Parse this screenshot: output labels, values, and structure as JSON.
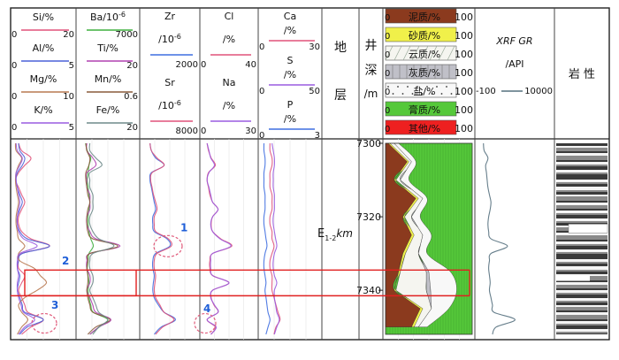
{
  "colors": {
    "si": "#e0527a",
    "al": "#4a60d8",
    "mg": "#b87850",
    "k": "#9a5ce0",
    "ba": "#2e5fa8",
    "ti": "#b040b0",
    "mn": "#8a5c3c",
    "fe": "#6e8a8a",
    "ba2": "#3fb03f",
    "zr": "#3f6ee0",
    "sr": "#e0527a",
    "cl": "#e0527a",
    "na": "#9a5ce0",
    "ca": "#e0527a",
    "s": "#9a5ce0",
    "p": "#3f6ee0",
    "gr": "#55707e",
    "highlight": "#e02020",
    "circle": "#e05a7a",
    "marker": "#1f5fd8",
    "mud": "#8b3a1e",
    "sand": "#f0f04a",
    "dolo": "#f5f5f0",
    "lime": "#c0c0c8",
    "salt": "#f8f8f8",
    "gypsum": "#55c83a",
    "other": "#ee2020"
  },
  "headers": {
    "col1": [
      {
        "name": "Si/%",
        "min": "0",
        "max": "20"
      },
      {
        "name": "Al/%",
        "min": "0",
        "max": "5"
      },
      {
        "name": "Mg/%",
        "min": "0",
        "max": "10"
      },
      {
        "name": "K/%",
        "min": "0",
        "max": "5"
      }
    ],
    "col2": [
      {
        "name": "Ba/10",
        "sup": "-6",
        "min": "",
        "max": "7000"
      },
      {
        "name": "Ti/%",
        "min": "",
        "max": "20"
      },
      {
        "name": "Mn/%",
        "min": "",
        "max": "0.6"
      },
      {
        "name": "Fe/%",
        "min": "",
        "max": "20"
      }
    ],
    "col3": [
      {
        "name": "Zr",
        "unit": "/10",
        "sup": "-6",
        "min": "",
        "max": "2000"
      },
      {
        "name": "Sr",
        "unit": "/10",
        "sup": "-6",
        "min": "",
        "max": "8000"
      }
    ],
    "col4": [
      {
        "name": "Cl",
        "unit": "/%",
        "min": "0",
        "max": "40"
      },
      {
        "name": "Na",
        "unit": "/%",
        "min": "0",
        "max": "30"
      }
    ],
    "col5": [
      {
        "name": "Ca",
        "unit": "/%",
        "min": "0",
        "max": "30"
      },
      {
        "name": "S",
        "unit": "/%",
        "min": "0",
        "max": "50"
      },
      {
        "name": "P",
        "unit": "/%",
        "min": "0",
        "max": "3"
      }
    ],
    "formation_label": [
      "地",
      "层"
    ],
    "depth_label": [
      "井",
      "深",
      "/m"
    ],
    "lith_legend": [
      "泥质/%",
      "砂质/%",
      "云质/%",
      "灰质/%",
      "盐/%",
      "膏质/%",
      "其他/%"
    ],
    "lith_min": "0",
    "lith_max": "100",
    "gr_title": "XRF GR",
    "gr_unit": "/API",
    "gr_min": "-100",
    "gr_max": "10000",
    "rock_label": "岩 性"
  },
  "formation_name": "E",
  "formation_sub": "1-2",
  "formation_suffix": "km",
  "depth_ticks": [
    "7300",
    "7320",
    "7340"
  ],
  "markers": [
    "1",
    "2",
    "3",
    "4"
  ],
  "chart_data": {
    "type": "line",
    "y_axis": {
      "label": "井深/m",
      "range": [
        7300,
        7352
      ],
      "ticks": [
        7300,
        7320,
        7340
      ]
    },
    "highlight_interval": [
      7334.5,
      7341.5
    ],
    "depth": [
      7300,
      7302,
      7304,
      7306,
      7308,
      7310,
      7312,
      7314,
      7316,
      7318,
      7320,
      7322,
      7324,
      7326,
      7328,
      7330,
      7332,
      7334,
      7336,
      7338,
      7340,
      7342,
      7344,
      7346,
      7348,
      7350,
      7352
    ],
    "series": [
      {
        "name": "Si",
        "track": 1,
        "range": [
          0,
          20
        ],
        "values": [
          2,
          3,
          6,
          4,
          2,
          1,
          2,
          3,
          4,
          3,
          2,
          2,
          3,
          6,
          12,
          3,
          2,
          2,
          4,
          3,
          2,
          3,
          4,
          5,
          10,
          6,
          3
        ]
      },
      {
        "name": "Al",
        "track": 1,
        "range": [
          0,
          5
        ],
        "values": [
          0.5,
          0.6,
          1.0,
          0.8,
          0.4,
          0.3,
          0.4,
          0.6,
          0.8,
          0.6,
          0.4,
          0.4,
          0.6,
          1.2,
          3.0,
          0.8,
          0.5,
          0.4,
          0.6,
          0.5,
          0.4,
          0.6,
          0.8,
          1.0,
          2.5,
          1.2,
          0.6
        ]
      },
      {
        "name": "Mg",
        "track": 1,
        "range": [
          0,
          10
        ],
        "values": [
          0.5,
          0.6,
          1.5,
          1.0,
          0.6,
          0.5,
          0.6,
          0.8,
          1.0,
          0.8,
          0.6,
          0.6,
          0.8,
          1.0,
          2.0,
          1.0,
          1.2,
          3.5,
          4.5,
          5.5,
          4.0,
          2.0,
          1.0,
          1.5,
          2.5,
          1.5,
          0.8
        ]
      },
      {
        "name": "K",
        "track": 1,
        "range": [
          0,
          5
        ],
        "values": [
          0.3,
          0.4,
          0.8,
          0.6,
          0.3,
          0.3,
          0.4,
          0.5,
          0.6,
          0.5,
          0.4,
          0.4,
          0.5,
          0.9,
          2.0,
          0.6,
          0.4,
          0.4,
          0.5,
          0.4,
          0.4,
          0.5,
          0.7,
          0.9,
          1.8,
          1.0,
          0.5
        ]
      },
      {
        "name": "Ba",
        "track": 2,
        "range": [
          0,
          7000
        ],
        "values": [
          900,
          1100,
          1500,
          1300,
          1200,
          1100,
          1200,
          1300,
          1400,
          1300,
          1200,
          1200,
          1300,
          1500,
          1800,
          1300,
          1200,
          1100,
          1200,
          1300,
          1200,
          1300,
          1500,
          1800,
          3500,
          2500,
          1400
        ]
      },
      {
        "name": "Ti",
        "track": 2,
        "range": [
          0,
          20
        ],
        "values": [
          3,
          3,
          5,
          6,
          3,
          3,
          3,
          4,
          4,
          4,
          3,
          3,
          4,
          6,
          14,
          4,
          3,
          3,
          4,
          4,
          3,
          4,
          5,
          6,
          11,
          7,
          4
        ]
      },
      {
        "name": "Mn",
        "track": 2,
        "range": [
          0,
          0.6
        ],
        "values": [
          0.08,
          0.09,
          0.12,
          0.11,
          0.08,
          0.08,
          0.09,
          0.1,
          0.12,
          0.1,
          0.09,
          0.09,
          0.1,
          0.15,
          0.4,
          0.12,
          0.1,
          0.09,
          0.1,
          0.1,
          0.09,
          0.1,
          0.12,
          0.15,
          0.32,
          0.18,
          0.1
        ]
      },
      {
        "name": "Fe",
        "track": 2,
        "range": [
          0,
          20
        ],
        "values": [
          4,
          4,
          6,
          8,
          4,
          4,
          4,
          5,
          5,
          5,
          4,
          4,
          5,
          7,
          12,
          5,
          4,
          4,
          5,
          5,
          4,
          5,
          6,
          7,
          10,
          7,
          5
        ]
      },
      {
        "name": "Zr",
        "track": 3,
        "range": [
          0,
          2000
        ],
        "values": [
          300,
          350,
          500,
          800,
          350,
          300,
          350,
          400,
          450,
          500,
          400,
          400,
          450,
          900,
          1000,
          500,
          400,
          400,
          450,
          420,
          400,
          450,
          600,
          800,
          1200,
          700,
          450
        ]
      },
      {
        "name": "Sr",
        "track": 3,
        "range": [
          0,
          8000
        ],
        "values": [
          1200,
          1400,
          2200,
          3200,
          1500,
          1300,
          1500,
          1700,
          2000,
          2200,
          1800,
          1800,
          2000,
          3800,
          4200,
          2200,
          1800,
          1800,
          2000,
          1900,
          1800,
          2000,
          2600,
          3200,
          4600,
          3000,
          2000
        ]
      },
      {
        "name": "Cl",
        "track": 4,
        "range": [
          0,
          40
        ],
        "values": [
          4,
          5,
          7,
          10,
          5,
          4,
          5,
          6,
          8,
          12,
          8,
          7,
          8,
          14,
          22,
          8,
          6,
          6,
          8,
          20,
          8,
          7,
          9,
          12,
          4,
          10,
          7
        ]
      },
      {
        "name": "Na",
        "track": 4,
        "range": [
          0,
          30
        ],
        "values": [
          3,
          4,
          5,
          7,
          4,
          3,
          4,
          5,
          6,
          9,
          6,
          5,
          6,
          10,
          16,
          6,
          5,
          5,
          6,
          15,
          6,
          5,
          7,
          9,
          3,
          8,
          5
        ]
      },
      {
        "name": "Ca",
        "track": 5,
        "range": [
          0,
          30
        ],
        "values": [
          5,
          5,
          6,
          6,
          5,
          5,
          5,
          6,
          6,
          6,
          5,
          5,
          6,
          6,
          7,
          6,
          5,
          5,
          6,
          6,
          6,
          7,
          8,
          9,
          10,
          8,
          7
        ]
      },
      {
        "name": "S",
        "track": 5,
        "range": [
          0,
          50
        ],
        "values": [
          10,
          11,
          12,
          12,
          11,
          11,
          11,
          12,
          12,
          12,
          11,
          11,
          12,
          13,
          14,
          12,
          11,
          11,
          12,
          14,
          12,
          12,
          13,
          14,
          16,
          14,
          12
        ]
      },
      {
        "name": "P",
        "track": 5,
        "range": [
          0,
          3
        ],
        "values": [
          0.2,
          0.2,
          0.25,
          0.25,
          0.2,
          0.2,
          0.2,
          0.25,
          0.25,
          0.25,
          0.2,
          0.2,
          0.25,
          0.3,
          0.35,
          0.25,
          0.2,
          0.2,
          0.25,
          0.3,
          0.25,
          0.3,
          0.35,
          0.4,
          0.5,
          0.4,
          0.3
        ]
      },
      {
        "name": "XRF GR",
        "track": 7,
        "range": [
          -100,
          10000
        ],
        "values": [
          800,
          900,
          1400,
          1100,
          1200,
          1300,
          1400,
          1600,
          1800,
          1700,
          1500,
          1400,
          1500,
          1800,
          4000,
          1800,
          1600,
          1500,
          1600,
          1700,
          1600,
          1800,
          2000,
          2200,
          5000,
          2500,
          2000
        ]
      }
    ],
    "lithology_composition": {
      "order": [
        "泥质",
        "砂质",
        "云质",
        "灰质",
        "盐",
        "膏质",
        "其他"
      ],
      "depth": [
        7300,
        7305,
        7310,
        7315,
        7320,
        7325,
        7330,
        7335,
        7340,
        7345,
        7350
      ],
      "values": [
        [
          3,
          2,
          5,
          0,
          5,
          85,
          0
        ],
        [
          25,
          2,
          3,
          0,
          5,
          65,
          0
        ],
        [
          10,
          2,
          5,
          0,
          10,
          73,
          0
        ],
        [
          35,
          3,
          5,
          0,
          5,
          52,
          0
        ],
        [
          20,
          2,
          8,
          0,
          10,
          60,
          0
        ],
        [
          30,
          3,
          10,
          0,
          10,
          47,
          0
        ],
        [
          20,
          3,
          15,
          0,
          10,
          52,
          0
        ],
        [
          15,
          2,
          30,
          3,
          25,
          25,
          0
        ],
        [
          10,
          2,
          35,
          5,
          30,
          18,
          0
        ],
        [
          40,
          3,
          10,
          0,
          20,
          27,
          0
        ],
        [
          30,
          3,
          5,
          0,
          10,
          52,
          0
        ]
      ]
    }
  }
}
